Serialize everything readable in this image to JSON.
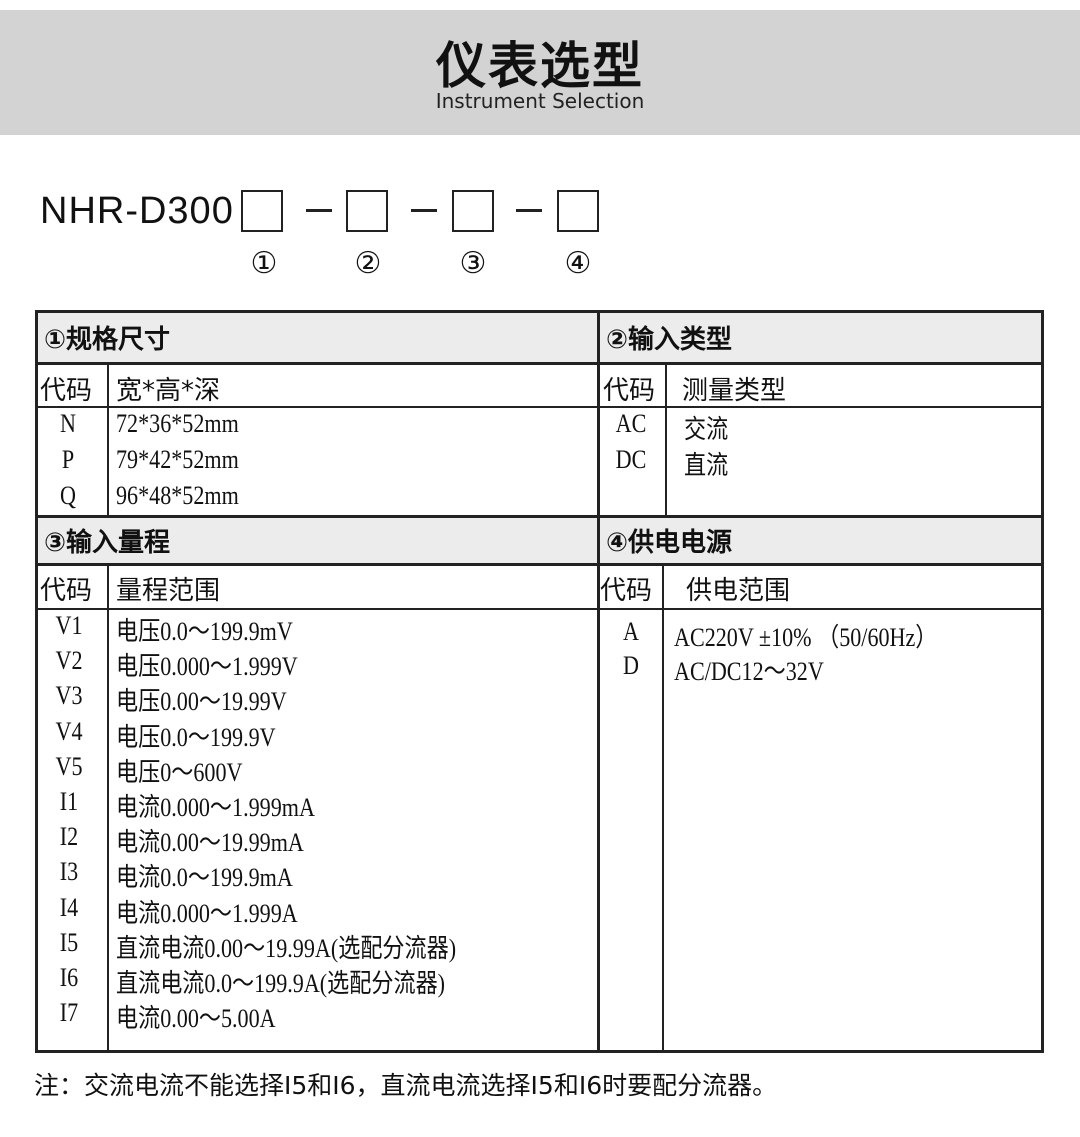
{
  "header": {
    "title": "仪表选型",
    "subtitle": "Instrument Selection"
  },
  "model": {
    "prefix": "NHR-D300",
    "slots": [
      "①",
      "②",
      "③",
      "④"
    ]
  },
  "sections": {
    "size": {
      "title": "①规格尺寸",
      "col_code": "代码",
      "col_desc": "宽*高*深",
      "rows": [
        {
          "code": "N",
          "desc": "72*36*52mm"
        },
        {
          "code": "P",
          "desc": "79*42*52mm"
        },
        {
          "code": "Q",
          "desc": "96*48*52mm"
        }
      ]
    },
    "input_type": {
      "title": "②输入类型",
      "col_code": "代码",
      "col_desc": "测量类型",
      "rows": [
        {
          "code": "AC",
          "desc": "交流"
        },
        {
          "code": "DC",
          "desc": "直流"
        }
      ]
    },
    "input_range": {
      "title": "③输入量程",
      "col_code": "代码",
      "col_desc": "量程范围",
      "rows": [
        {
          "code": "V1",
          "desc": "电压0.0～199.9mV"
        },
        {
          "code": "V2",
          "desc": "电压0.000～1.999V"
        },
        {
          "code": "V3",
          "desc": "电压0.00～19.99V"
        },
        {
          "code": "V4",
          "desc": "电压0.0～199.9V"
        },
        {
          "code": "V5",
          "desc": "电压0～600V"
        },
        {
          "code": "I1",
          "desc": "电流0.000～1.999mA"
        },
        {
          "code": "I2",
          "desc": "电流0.00～19.99mA"
        },
        {
          "code": "I3",
          "desc": "电流0.0～199.9mA"
        },
        {
          "code": "I4",
          "desc": "电流0.000～1.999A"
        },
        {
          "code": "I5",
          "desc": "直流电流0.00～19.99A(选配分流器)"
        },
        {
          "code": "I6",
          "desc": "直流电流0.0～199.9A(选配分流器)"
        },
        {
          "code": "I7",
          "desc": "电流0.00～5.00A"
        }
      ]
    },
    "power": {
      "title": "④供电电源",
      "col_code": "代码",
      "col_desc": "供电范围",
      "rows": [
        {
          "code": "A",
          "desc": "AC220V ±10% （50/60Hz）"
        },
        {
          "code": "D",
          "desc": "AC/DC12～32V"
        }
      ]
    }
  },
  "note": "注：交流电流不能选择I5和I6，直流电流选择I5和I6时要配分流器。"
}
